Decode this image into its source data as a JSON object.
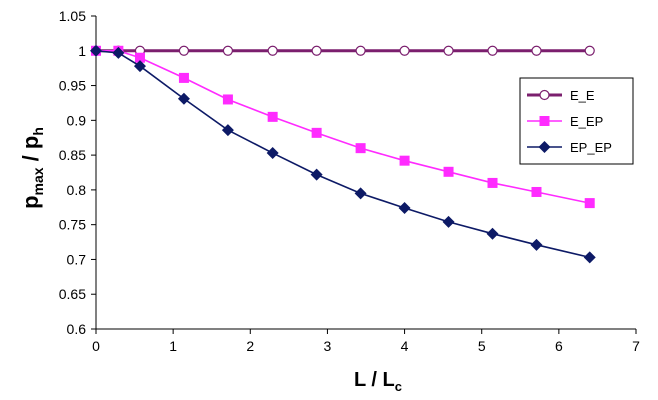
{
  "chart_data": {
    "type": "line",
    "x": [
      0,
      0.29,
      0.57,
      1.14,
      1.71,
      2.29,
      2.86,
      3.43,
      4.0,
      4.57,
      5.14,
      5.71,
      6.4
    ],
    "series": [
      {
        "name": "E_E",
        "values": [
          1,
          1,
          1,
          1,
          1,
          1,
          1,
          1,
          1,
          1,
          1,
          1,
          1
        ],
        "color": "#7b1f6e",
        "marker": "circle-open"
      },
      {
        "name": "E_EP",
        "values": [
          1.0,
          1.0,
          0.99,
          0.961,
          0.93,
          0.905,
          0.882,
          0.86,
          0.842,
          0.826,
          0.81,
          0.797,
          0.781
        ],
        "color": "#ff2bff",
        "marker": "square"
      },
      {
        "name": "EP_EP",
        "values": [
          1.0,
          0.997,
          0.978,
          0.931,
          0.886,
          0.853,
          0.822,
          0.795,
          0.774,
          0.754,
          0.737,
          0.721,
          0.703
        ],
        "color": "#0d1a66",
        "marker": "diamond"
      }
    ],
    "xlim": [
      0,
      7
    ],
    "ylim": [
      0.6,
      1.05
    ],
    "x_ticks": [
      "0",
      "1",
      "2",
      "3",
      "4",
      "5",
      "6",
      "7"
    ],
    "y_ticks": [
      "0.6",
      "0.65",
      "0.7",
      "0.75",
      "0.8",
      "0.85",
      "0.9",
      "0.95",
      "1",
      "1.05"
    ],
    "xlabel": {
      "main": "L / L",
      "sub": "c"
    },
    "ylabel": {
      "p": "p",
      "max": "max",
      "slash": " / p",
      "h": "h"
    },
    "legend_position": "right",
    "grid": false
  }
}
